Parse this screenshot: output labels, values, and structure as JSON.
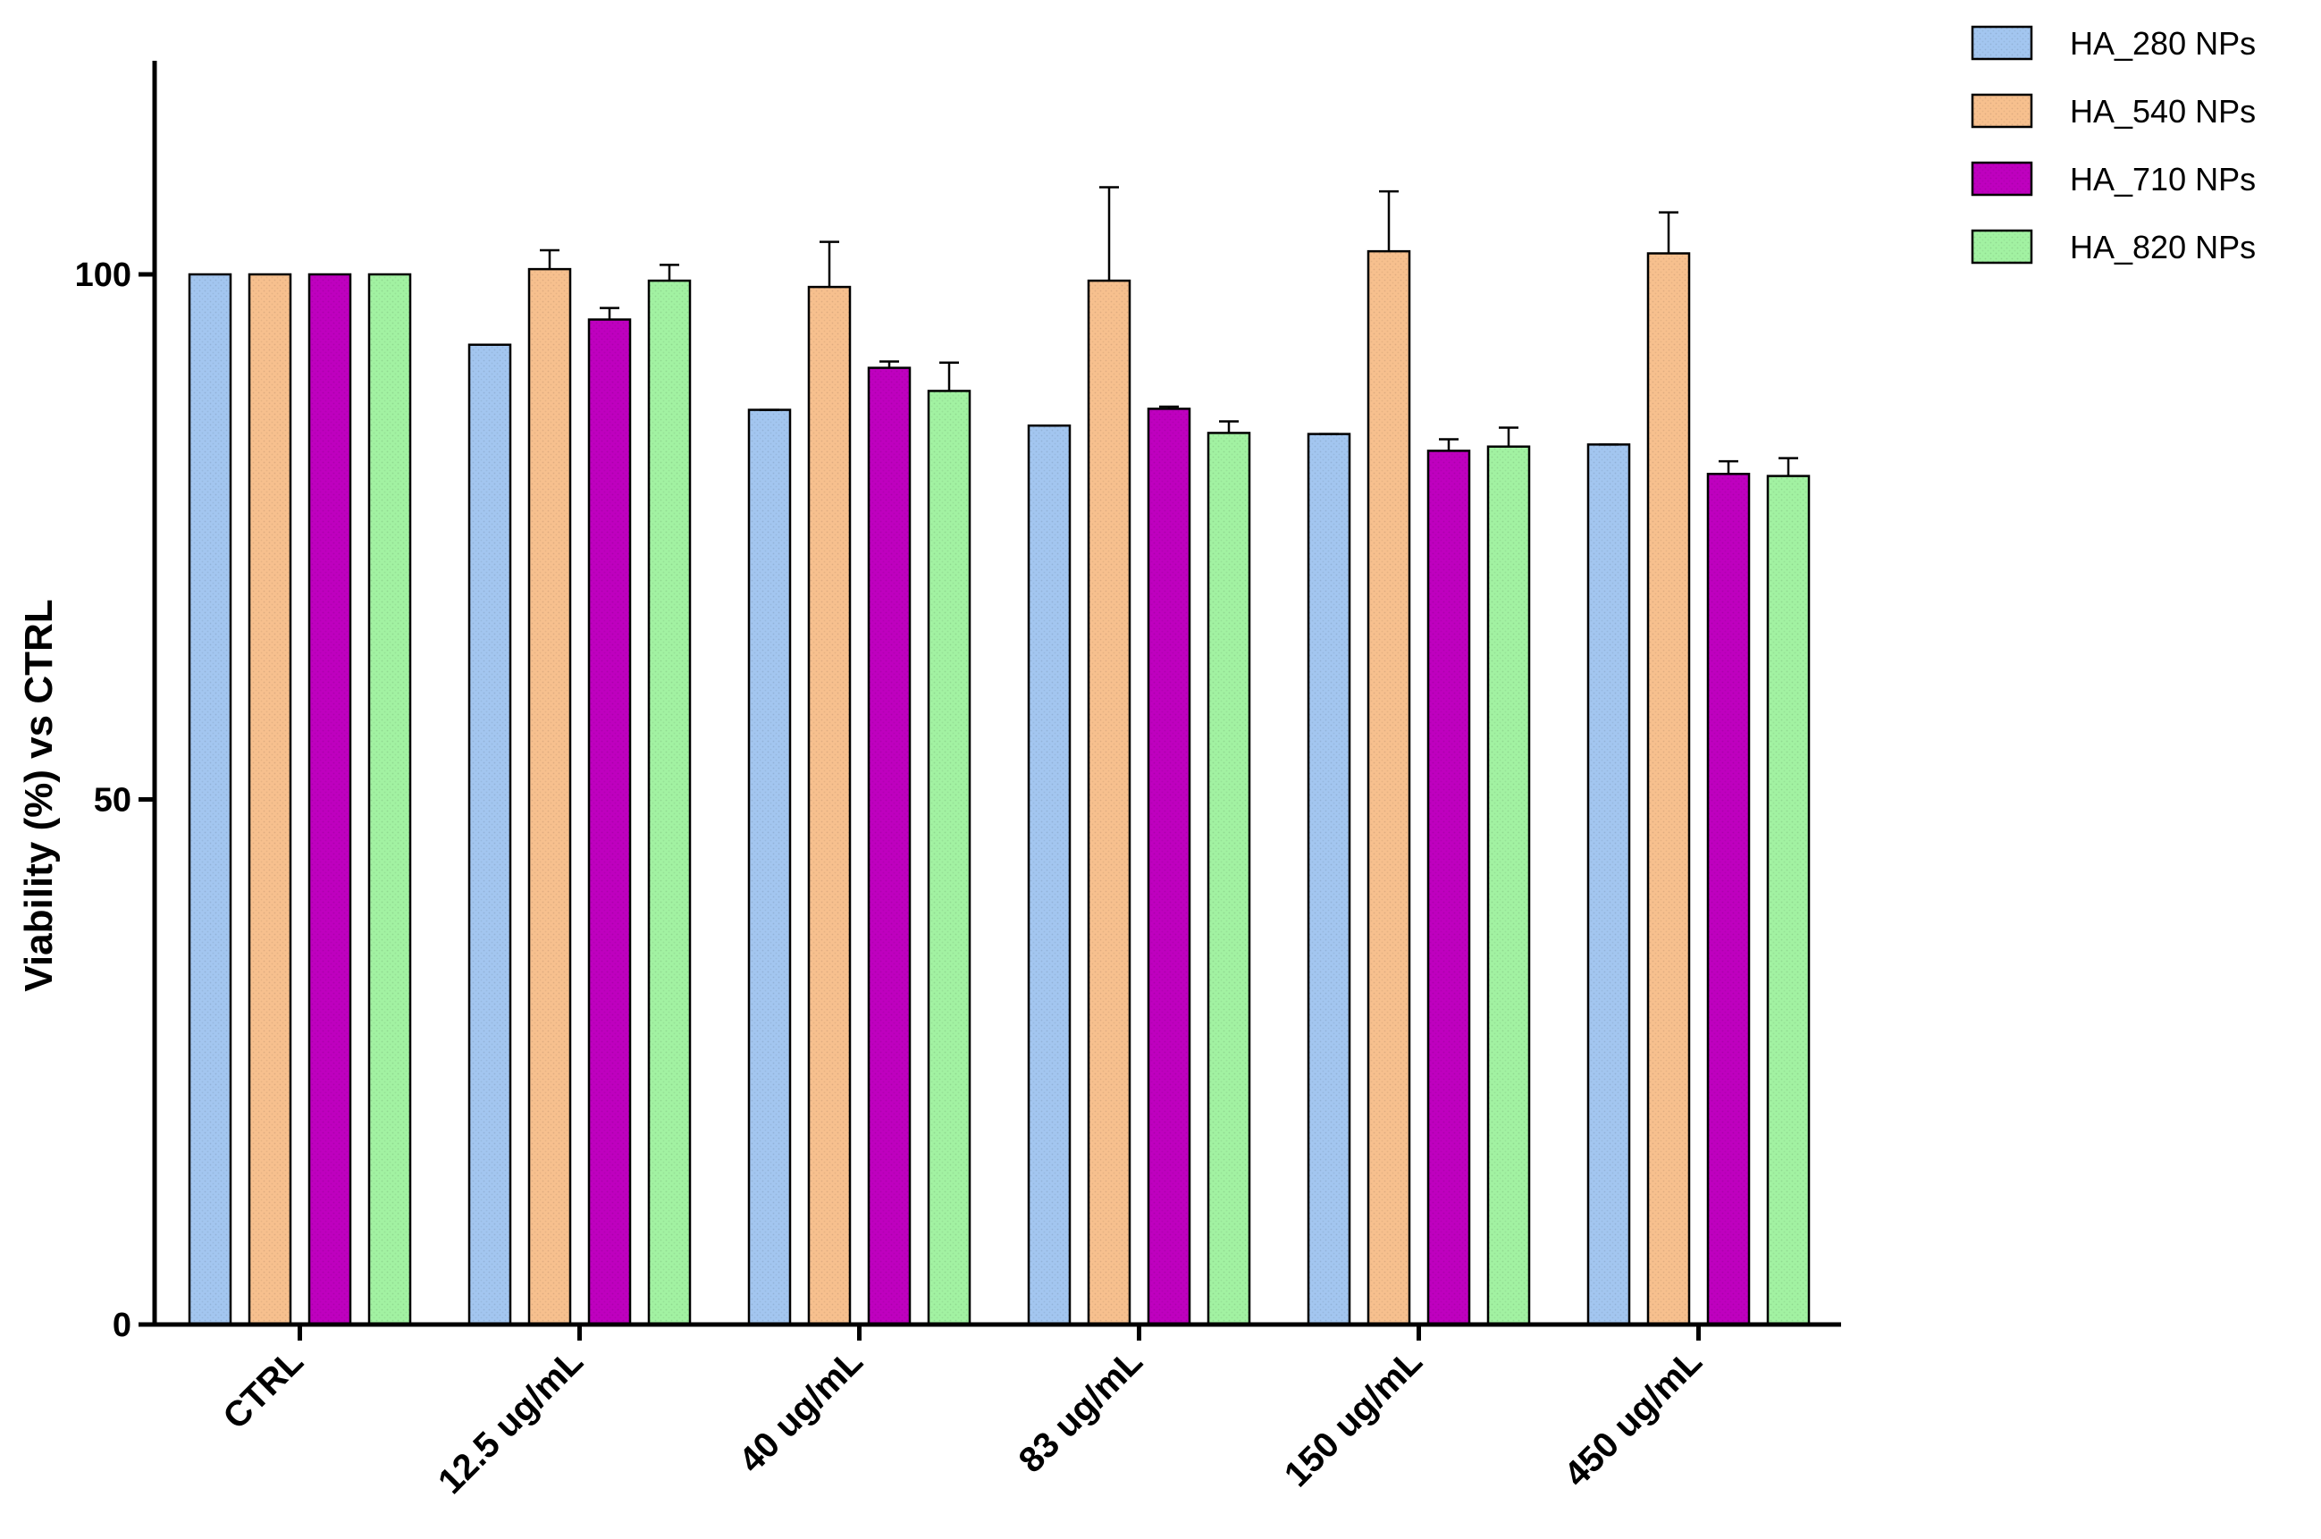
{
  "chart_data": {
    "type": "bar",
    "title": "",
    "xlabel": "",
    "ylabel": "Viability (%) vs CTRL",
    "ylim": [
      0,
      120
    ],
    "yticks": [
      0,
      50,
      100
    ],
    "grid": false,
    "legend_position": "top-right",
    "categories": [
      "CTRL",
      "12.5 ug/mL",
      "40 ug/mL",
      "83 ug/mL",
      "150 ug/mL",
      "450 ug/mL"
    ],
    "series": [
      {
        "name": "HA_280 NPs",
        "color": "#a3c6f0",
        "values": [
          100,
          93.3,
          87.1,
          85.6,
          84.8,
          83.8
        ],
        "errors": [
          0,
          0,
          0,
          0,
          0,
          0
        ]
      },
      {
        "name": "HA_540 NPs",
        "color": "#f7c08e",
        "values": [
          100,
          100.5,
          98.8,
          99.4,
          102.2,
          102.0
        ],
        "errors": [
          0,
          1.8,
          4.3,
          8.9,
          5.7,
          3.9
        ]
      },
      {
        "name": "HA_710 NPs",
        "color": "#bf00bf",
        "values": [
          100,
          95.7,
          91.1,
          87.2,
          83.2,
          81.0
        ],
        "errors": [
          0,
          1.1,
          0.6,
          0.2,
          1.1,
          1.2
        ]
      },
      {
        "name": "HA_820 NPs",
        "color": "#a2f2a2",
        "values": [
          100,
          99.4,
          88.9,
          84.9,
          83.6,
          80.8
        ],
        "errors": [
          0,
          1.5,
          2.7,
          1.1,
          1.8,
          1.7
        ]
      }
    ]
  }
}
